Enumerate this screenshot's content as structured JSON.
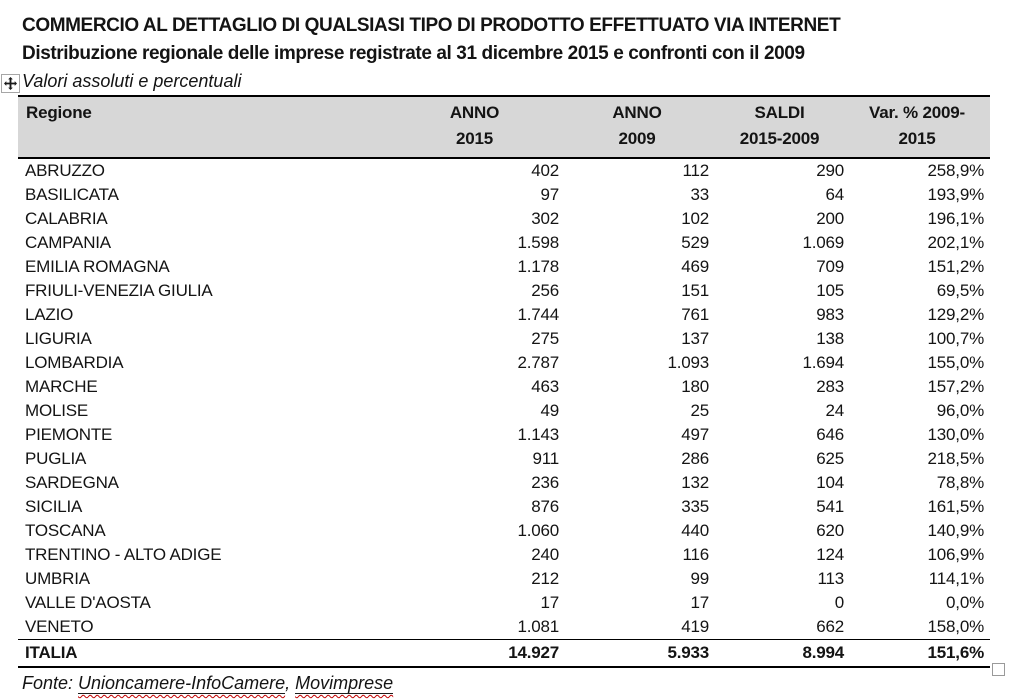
{
  "header": {
    "title": "COMMERCIO AL DETTAGLIO DI QUALSIASI TIPO DI PRODOTTO EFFETTUATO VIA INTERNET",
    "subtitle": "Distribuzione regionale delle imprese registrate al 31 dicembre 2015 e confronti con il 2009",
    "caption": "Valori assoluti e percentuali"
  },
  "table": {
    "headers": [
      {
        "lines": [
          "Regione"
        ]
      },
      {
        "lines": [
          "ANNO",
          "2015"
        ]
      },
      {
        "lines": [
          "ANNO",
          "2009"
        ]
      },
      {
        "lines": [
          "SALDI",
          "2015-2009"
        ]
      },
      {
        "lines": [
          "Var. % 2009-",
          "2015"
        ]
      }
    ],
    "rows": [
      [
        "ABRUZZO",
        "402",
        "112",
        "290",
        "258,9%"
      ],
      [
        "BASILICATA",
        "97",
        "33",
        "64",
        "193,9%"
      ],
      [
        "CALABRIA",
        "302",
        "102",
        "200",
        "196,1%"
      ],
      [
        "CAMPANIA",
        "1.598",
        "529",
        "1.069",
        "202,1%"
      ],
      [
        "EMILIA ROMAGNA",
        "1.178",
        "469",
        "709",
        "151,2%"
      ],
      [
        "FRIULI-VENEZIA GIULIA",
        "256",
        "151",
        "105",
        "69,5%"
      ],
      [
        "LAZIO",
        "1.744",
        "761",
        "983",
        "129,2%"
      ],
      [
        "LIGURIA",
        "275",
        "137",
        "138",
        "100,7%"
      ],
      [
        "LOMBARDIA",
        "2.787",
        "1.093",
        "1.694",
        "155,0%"
      ],
      [
        "MARCHE",
        "463",
        "180",
        "283",
        "157,2%"
      ],
      [
        "MOLISE",
        "49",
        "25",
        "24",
        "96,0%"
      ],
      [
        "PIEMONTE",
        "1.143",
        "497",
        "646",
        "130,0%"
      ],
      [
        "PUGLIA",
        "911",
        "286",
        "625",
        "218,5%"
      ],
      [
        "SARDEGNA",
        "236",
        "132",
        "104",
        "78,8%"
      ],
      [
        "SICILIA",
        "876",
        "335",
        "541",
        "161,5%"
      ],
      [
        "TOSCANA",
        "1.060",
        "440",
        "620",
        "140,9%"
      ],
      [
        "TRENTINO - ALTO ADIGE",
        "240",
        "116",
        "124",
        "106,9%"
      ],
      [
        "UMBRIA",
        "212",
        "99",
        "113",
        "114,1%"
      ],
      [
        "VALLE D'AOSTA",
        "17",
        "17",
        "0",
        "0,0%"
      ],
      [
        "VENETO",
        "1.081",
        "419",
        "662",
        "158,0%"
      ]
    ],
    "total_row": [
      "ITALIA",
      "14.927",
      "5.933",
      "8.994",
      "151,6%"
    ]
  },
  "footer": {
    "prefix": "Fonte: ",
    "source_1": "Unioncamere-InfoCamere",
    "separator": ", ",
    "source_2": "Movimprese"
  },
  "colors": {
    "header_bg": "#d7d7d7",
    "table_border": "#000000",
    "spellcheck_underline": "#c00000",
    "handle_border": "#a6a6a6"
  },
  "icons": {
    "move_handle": "move-cross-icon",
    "resize_handle": "resize-square-icon"
  }
}
